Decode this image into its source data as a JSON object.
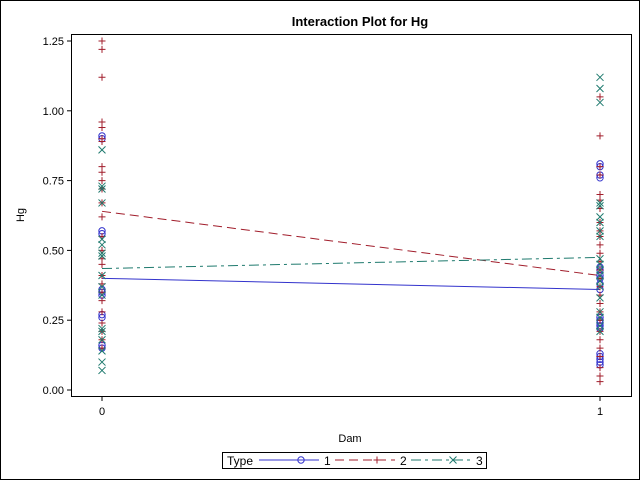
{
  "chart_data": {
    "type": "scatter",
    "title": "Interaction Plot for Hg",
    "xlabel": "Dam",
    "ylabel": "Hg",
    "x_categories": [
      "0",
      "1"
    ],
    "xlim": [
      0,
      1
    ],
    "ylim": [
      0.0,
      1.25
    ],
    "yticks": [
      0.0,
      0.25,
      0.5,
      0.75,
      1.0,
      1.25
    ],
    "ytick_labels": [
      "0.00",
      "0.25",
      "0.50",
      "0.75",
      "1.00",
      "1.25"
    ],
    "legend": {
      "title": "Type",
      "placement": "bottom"
    },
    "series": [
      {
        "name": "1",
        "label": "1",
        "marker": "circle",
        "line_style": "solid",
        "color": "#3333cc",
        "means": [
          0.4,
          0.36
        ],
        "points": {
          "0": [
            0.91,
            0.9,
            0.57,
            0.56,
            0.36,
            0.35,
            0.34,
            0.27,
            0.26,
            0.16,
            0.15
          ],
          "1": [
            0.81,
            0.8,
            0.77,
            0.76,
            0.44,
            0.43,
            0.41,
            0.4,
            0.38,
            0.36,
            0.26,
            0.25,
            0.24,
            0.23,
            0.22,
            0.13,
            0.12,
            0.11,
            0.1,
            0.09
          ]
        }
      },
      {
        "name": "2",
        "label": "2",
        "marker": "plus",
        "line_style": "dashed",
        "color": "#a11d2b",
        "means": [
          0.64,
          0.41
        ],
        "points": {
          "0": [
            1.25,
            1.22,
            1.12,
            0.96,
            0.94,
            0.9,
            0.89,
            0.8,
            0.78,
            0.75,
            0.72,
            0.67,
            0.62,
            0.55,
            0.5,
            0.47,
            0.45,
            0.41,
            0.38,
            0.35,
            0.32,
            0.28,
            0.24,
            0.21,
            0.18,
            0.15
          ],
          "1": [
            1.05,
            0.91,
            0.8,
            0.77,
            0.7,
            0.68,
            0.65,
            0.6,
            0.57,
            0.55,
            0.52,
            0.49,
            0.46,
            0.43,
            0.4,
            0.37,
            0.34,
            0.31,
            0.28,
            0.25,
            0.21,
            0.18,
            0.15,
            0.12,
            0.08,
            0.05,
            0.03
          ]
        }
      },
      {
        "name": "3",
        "label": "3",
        "marker": "x",
        "line_style": "dashdot",
        "color": "#1f7a6e",
        "means": [
          0.435,
          0.475
        ],
        "points": {
          "0": [
            0.86,
            0.73,
            0.72,
            0.67,
            0.54,
            0.52,
            0.49,
            0.48,
            0.41,
            0.37,
            0.34,
            0.22,
            0.21,
            0.18,
            0.14,
            0.1,
            0.07
          ],
          "1": [
            1.12,
            1.08,
            1.03,
            0.67,
            0.66,
            0.62,
            0.6,
            0.57,
            0.55,
            0.47,
            0.45,
            0.43,
            0.41,
            0.39,
            0.37,
            0.33,
            0.28,
            0.26,
            0.23,
            0.21
          ]
        }
      }
    ]
  }
}
